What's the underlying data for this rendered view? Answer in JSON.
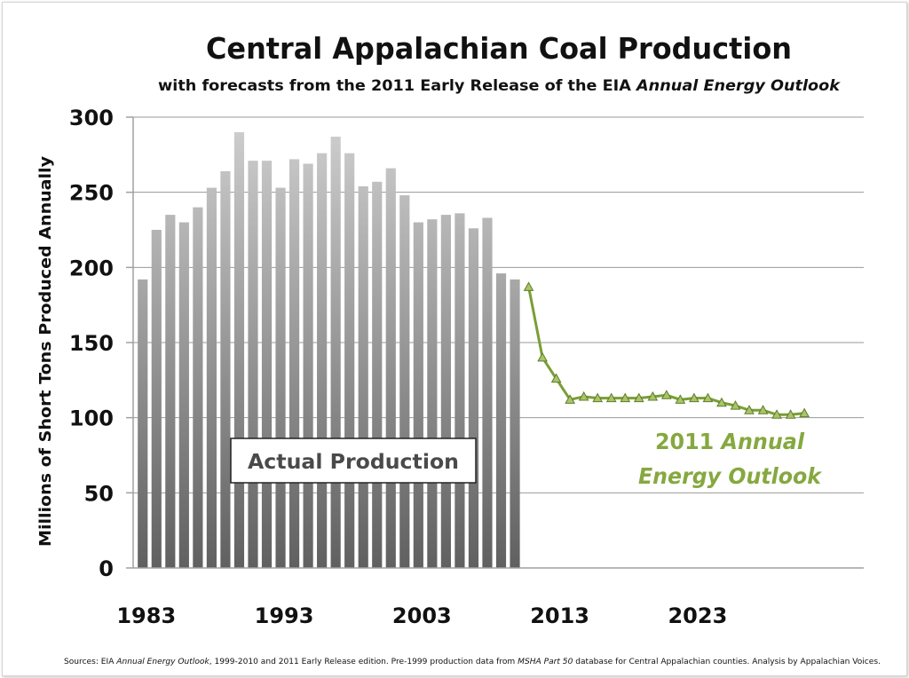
{
  "chart_data": {
    "type": "bar",
    "title": "Central Appalachian Coal Production",
    "subtitle": {
      "prefix": "with forecasts from the 2011 Early Release of the EIA ",
      "italic": "Annual Energy Outlook"
    },
    "ylabel": "Millions of Short Tons Produced Annually",
    "ylim": [
      0,
      300
    ],
    "yticks": [
      "0",
      "50",
      "100",
      "150",
      "200",
      "250",
      "300"
    ],
    "xlim": [
      1983,
      2035
    ],
    "xticks": [
      {
        "year": 1983,
        "label": "1983"
      },
      {
        "year": 1993,
        "label": "1993"
      },
      {
        "year": 2003,
        "label": "2003"
      },
      {
        "year": 2013,
        "label": "2013"
      },
      {
        "year": 2023,
        "label": "2023"
      }
    ],
    "grid": true,
    "series": [
      {
        "name": "Actual Production",
        "type": "bar",
        "x": [
          1983,
          1984,
          1985,
          1986,
          1987,
          1988,
          1989,
          1990,
          1991,
          1992,
          1993,
          1994,
          1995,
          1996,
          1997,
          1998,
          1999,
          2000,
          2001,
          2002,
          2003,
          2004,
          2005,
          2006,
          2007,
          2008,
          2009,
          2010
        ],
        "values": [
          192,
          225,
          235,
          230,
          240,
          253,
          264,
          290,
          271,
          271,
          253,
          272,
          269,
          276,
          287,
          276,
          254,
          257,
          266,
          248,
          230,
          232,
          235,
          236,
          226,
          233,
          196,
          192
        ]
      },
      {
        "name": "2011 Annual Energy Outlook",
        "type": "line",
        "color": "#7a9e35",
        "x": [
          2011,
          2012,
          2013,
          2014,
          2015,
          2016,
          2017,
          2018,
          2019,
          2020,
          2021,
          2022,
          2023,
          2024,
          2025,
          2026,
          2027,
          2028,
          2029,
          2030,
          2031
        ],
        "values": [
          187,
          140,
          126,
          112,
          114,
          113,
          113,
          113,
          113,
          114,
          115,
          112,
          113,
          113,
          110,
          108,
          105,
          105,
          102,
          102,
          103
        ]
      }
    ],
    "annotations": {
      "actual_box": "Actual Production",
      "outlook_line1_plain": "2011 ",
      "outlook_line1_italic": "Annual",
      "outlook_line2": "Energy Outlook"
    },
    "sources": {
      "p1": "Sources: EIA ",
      "i1": "Annual Energy Outlook",
      "p2": ", 1999-2010 and 2011 Early Release edition. Pre-1999 production data from ",
      "i2": "MSHA Part 50",
      "p3": " database for Central Appalachian counties. Analysis by Appalachian Voices."
    }
  }
}
